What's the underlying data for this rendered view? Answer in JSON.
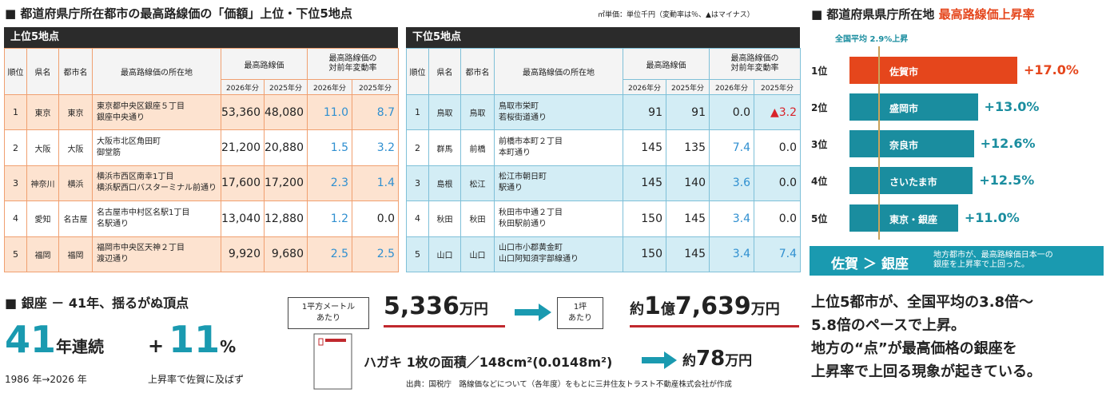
{
  "header": {
    "title": "■ 都道府県庁所在都市の最高路線価の「価額」上位・下位5地点",
    "unit_note": "㎡単価：単位千円（変動率は％、▲はマイナス）"
  },
  "top_table": {
    "title": "上位5地点",
    "columns": [
      "順位",
      "県名",
      "都市名",
      "最高路線価の所在地"
    ],
    "price_header": "最高路線価",
    "change_header": [
      "最高路線価の",
      "対前年変動率"
    ],
    "years": [
      "2026年分",
      "2025年分",
      "2026年分",
      "2025年分"
    ],
    "rows": [
      [
        "1",
        "東京",
        "東京",
        [
          "東京都中央区銀座５丁目",
          "銀座中央通り"
        ],
        "53,360",
        "48,080",
        "11.0",
        "8.7"
      ],
      [
        "2",
        "大阪",
        "大阪",
        [
          "大阪市北区角田町",
          "御堂筋"
        ],
        "21,200",
        "20,880",
        "1.5",
        "3.2"
      ],
      [
        "3",
        "神奈川",
        "横浜",
        [
          "横浜市西区南幸1丁目",
          "横浜駅西口バスターミナル前通り"
        ],
        "17,600",
        "17,200",
        "2.3",
        "1.4"
      ],
      [
        "4",
        "愛知",
        "名古屋",
        [
          "名古屋市中村区名駅1丁目",
          "名駅通り"
        ],
        "13,040",
        "12,880",
        "1.2",
        "0.0"
      ],
      [
        "5",
        "福岡",
        "福岡",
        [
          "福岡市中央区天神２丁目",
          "渡辺通り"
        ],
        "9,920",
        "9,680",
        "2.5",
        "2.5"
      ]
    ]
  },
  "bottom_table": {
    "title": "下位5地点",
    "columns": [
      "順位",
      "県名",
      "都市名",
      "最高路線価の所在地"
    ],
    "price_header": "最高路線価",
    "change_header": [
      "最高路線価の",
      "対前年変動率"
    ],
    "years": [
      "2026年分",
      "2025年分",
      "2026年分",
      "2025年分"
    ],
    "rows": [
      [
        "1",
        "鳥取",
        "鳥取",
        [
          "鳥取市栄町",
          "若桜街道通り"
        ],
        "91",
        "91",
        "0.0",
        "▲3.2"
      ],
      [
        "2",
        "群馬",
        "前橋",
        [
          "前橋市本町２丁目",
          "本町通り"
        ],
        "145",
        "135",
        "7.4",
        "0.0"
      ],
      [
        "3",
        "島根",
        "松江",
        [
          "松江市朝日町",
          "駅通り"
        ],
        "145",
        "140",
        "3.6",
        "0.0"
      ],
      [
        "4",
        "秋田",
        "秋田",
        [
          "秋田市中通２丁目",
          "秋田駅前通り"
        ],
        "150",
        "145",
        "3.4",
        "0.0"
      ],
      [
        "5",
        "山口",
        "山口",
        [
          "山口市小郡黄金町",
          "山口阿知須宇部線通り"
        ],
        "150",
        "145",
        "3.4",
        "7.4"
      ]
    ]
  },
  "growth_chart": {
    "type": "bar",
    "title_prefix": "■ 都道府県県庁所在地",
    "title": "最高路線価上昇率",
    "average": {
      "value": 2.9,
      "label": "全国平均 2.9%上昇"
    },
    "ranks": [
      "1位",
      "2位",
      "3位",
      "4位",
      "5位"
    ],
    "categories": [
      "佐賀市",
      "盛岡市",
      "奈良市",
      "さいたま市",
      "東京・銀座"
    ],
    "values": [
      17.0,
      13.0,
      12.6,
      12.5,
      11.0
    ],
    "value_labels": [
      "+17.0%",
      "+13.0%",
      "+12.6%",
      "+12.5%",
      "+11.0%"
    ],
    "colors": [
      "#e5461c",
      "#1a8d9f",
      "#1a8d9f",
      "#1a8d9f",
      "#1a8d9f"
    ]
  },
  "banner": {
    "left": "佐賀 ＞ 銀座",
    "right_lines": [
      "地方都市が、最高路線価日本一の",
      "銀座を上昇率で上回った。"
    ]
  },
  "ginza": {
    "title": "■ 銀座 － 41年、揺るがぬ頂点",
    "years": "41",
    "years_unit": "年連続",
    "plus": "+",
    "rate": "11",
    "rate_unit": "%",
    "period": "1986 年→2026 年",
    "note": "上昇率で佐賀に及ばず"
  },
  "price": {
    "per_sqm_label": [
      "1平方メートル",
      "あたり"
    ],
    "per_sqm_value": [
      "5,336",
      "万円"
    ],
    "per_tsubo_label": [
      "1坪",
      "あたり"
    ],
    "per_tsubo_value": [
      "約",
      "1",
      "億",
      "7,639",
      "万円"
    ],
    "postcard_text": "ハガキ 1枚の面積／148cm²(0.0148m²)",
    "postcard_value": [
      "約",
      "78",
      "万円"
    ],
    "source": "出典：国税庁　路線価などについて（各年度）をもとに三井住友トラスト不動産株式会社が作成"
  },
  "summary": {
    "lines": [
      "上位5都市が、全国平均の3.8倍～",
      "5.8倍のペースで上昇。",
      "地方の“点”が最高価格の銀座を",
      "上昇率で上回る現象が起きている。"
    ]
  }
}
